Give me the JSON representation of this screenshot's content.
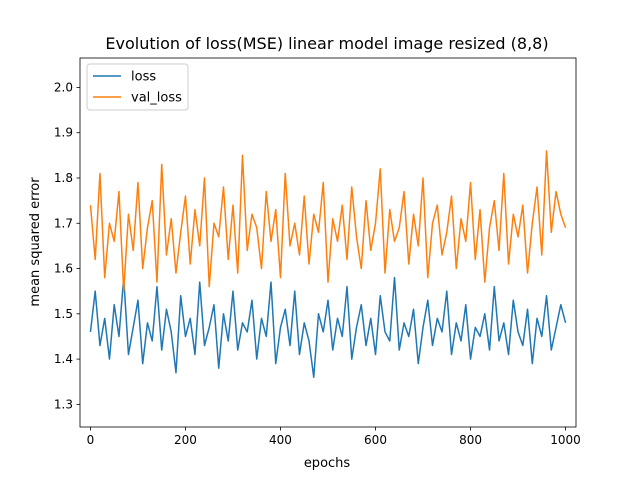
{
  "chart_data": {
    "type": "line",
    "title": "Evolution of loss(MSE) linear model image resized (8,8)",
    "xlabel": "epochs",
    "ylabel": "mean squared error",
    "xlim": [
      -22,
      1022
    ],
    "ylim": [
      1.25,
      2.065
    ],
    "xticks": [
      0,
      200,
      400,
      600,
      800,
      1000
    ],
    "yticks": [
      1.3,
      1.4,
      1.5,
      1.6,
      1.7,
      1.8,
      1.9,
      2.0
    ],
    "ytick_labels": [
      "1.3",
      "1.4",
      "1.5",
      "1.6",
      "1.7",
      "1.8",
      "1.9",
      "2.0"
    ],
    "grid": false,
    "legend_position": "top-left",
    "series": [
      {
        "name": "loss",
        "color": "#1f77b4",
        "x": [
          0,
          10,
          20,
          30,
          40,
          50,
          60,
          70,
          80,
          90,
          100,
          110,
          120,
          130,
          140,
          150,
          160,
          170,
          180,
          190,
          200,
          210,
          220,
          230,
          240,
          250,
          260,
          270,
          280,
          290,
          300,
          310,
          320,
          330,
          340,
          350,
          360,
          370,
          380,
          390,
          400,
          410,
          420,
          430,
          440,
          450,
          460,
          470,
          480,
          490,
          500,
          510,
          520,
          530,
          540,
          550,
          560,
          570,
          580,
          590,
          600,
          610,
          620,
          630,
          640,
          650,
          660,
          670,
          680,
          690,
          700,
          710,
          720,
          730,
          740,
          750,
          760,
          770,
          780,
          790,
          800,
          810,
          820,
          830,
          840,
          850,
          860,
          870,
          880,
          890,
          900,
          910,
          920,
          930,
          940,
          950,
          960,
          970,
          980,
          990,
          1000
        ],
        "values": [
          1.46,
          1.55,
          1.43,
          1.49,
          1.4,
          1.52,
          1.45,
          1.58,
          1.41,
          1.47,
          1.53,
          1.39,
          1.48,
          1.44,
          1.56,
          1.42,
          1.51,
          1.46,
          1.37,
          1.54,
          1.45,
          1.49,
          1.41,
          1.57,
          1.43,
          1.47,
          1.52,
          1.38,
          1.5,
          1.44,
          1.55,
          1.42,
          1.48,
          1.46,
          1.53,
          1.4,
          1.49,
          1.45,
          1.57,
          1.39,
          1.47,
          1.51,
          1.43,
          1.55,
          1.41,
          1.48,
          1.44,
          1.36,
          1.5,
          1.46,
          1.53,
          1.42,
          1.49,
          1.45,
          1.56,
          1.4,
          1.47,
          1.52,
          1.43,
          1.49,
          1.41,
          1.54,
          1.46,
          1.44,
          1.58,
          1.42,
          1.48,
          1.45,
          1.51,
          1.39,
          1.47,
          1.53,
          1.43,
          1.49,
          1.46,
          1.55,
          1.41,
          1.48,
          1.44,
          1.52,
          1.4,
          1.47,
          1.45,
          1.5,
          1.42,
          1.56,
          1.44,
          1.48,
          1.41,
          1.53,
          1.46,
          1.43,
          1.51,
          1.39,
          1.49,
          1.45,
          1.54,
          1.42,
          1.47,
          1.52,
          1.48
        ]
      },
      {
        "name": "val_loss",
        "color": "#ff7f0e",
        "x": [
          0,
          10,
          20,
          30,
          40,
          50,
          60,
          70,
          80,
          90,
          100,
          110,
          120,
          130,
          140,
          150,
          160,
          170,
          180,
          190,
          200,
          210,
          220,
          230,
          240,
          250,
          260,
          270,
          280,
          290,
          300,
          310,
          320,
          330,
          340,
          350,
          360,
          370,
          380,
          390,
          400,
          410,
          420,
          430,
          440,
          450,
          460,
          470,
          480,
          490,
          500,
          510,
          520,
          530,
          540,
          550,
          560,
          570,
          580,
          590,
          600,
          610,
          620,
          630,
          640,
          650,
          660,
          670,
          680,
          690,
          700,
          710,
          720,
          730,
          740,
          750,
          760,
          770,
          780,
          790,
          800,
          810,
          820,
          830,
          840,
          850,
          860,
          870,
          880,
          890,
          900,
          910,
          920,
          930,
          940,
          950,
          960,
          970,
          980,
          990,
          1000
        ],
        "values": [
          1.74,
          1.62,
          1.81,
          1.58,
          1.7,
          1.66,
          1.77,
          1.55,
          1.72,
          1.64,
          1.79,
          1.6,
          1.69,
          1.75,
          1.57,
          1.83,
          1.63,
          1.71,
          1.59,
          1.68,
          1.76,
          1.61,
          1.73,
          1.65,
          1.8,
          1.56,
          1.7,
          1.67,
          1.78,
          1.62,
          1.74,
          1.59,
          1.85,
          1.64,
          1.72,
          1.69,
          1.6,
          1.77,
          1.66,
          1.73,
          1.58,
          1.81,
          1.65,
          1.7,
          1.63,
          1.76,
          1.61,
          1.72,
          1.68,
          1.79,
          1.57,
          1.71,
          1.66,
          1.74,
          1.62,
          1.78,
          1.67,
          1.6,
          1.75,
          1.64,
          1.7,
          1.82,
          1.59,
          1.73,
          1.66,
          1.69,
          1.77,
          1.61,
          1.72,
          1.65,
          1.8,
          1.58,
          1.7,
          1.74,
          1.63,
          1.68,
          1.76,
          1.6,
          1.71,
          1.66,
          1.79,
          1.62,
          1.73,
          1.57,
          1.69,
          1.75,
          1.64,
          1.81,
          1.61,
          1.72,
          1.67,
          1.74,
          1.59,
          1.7,
          1.78,
          1.63,
          1.86,
          1.68,
          1.77,
          1.72,
          1.69
        ]
      }
    ]
  }
}
